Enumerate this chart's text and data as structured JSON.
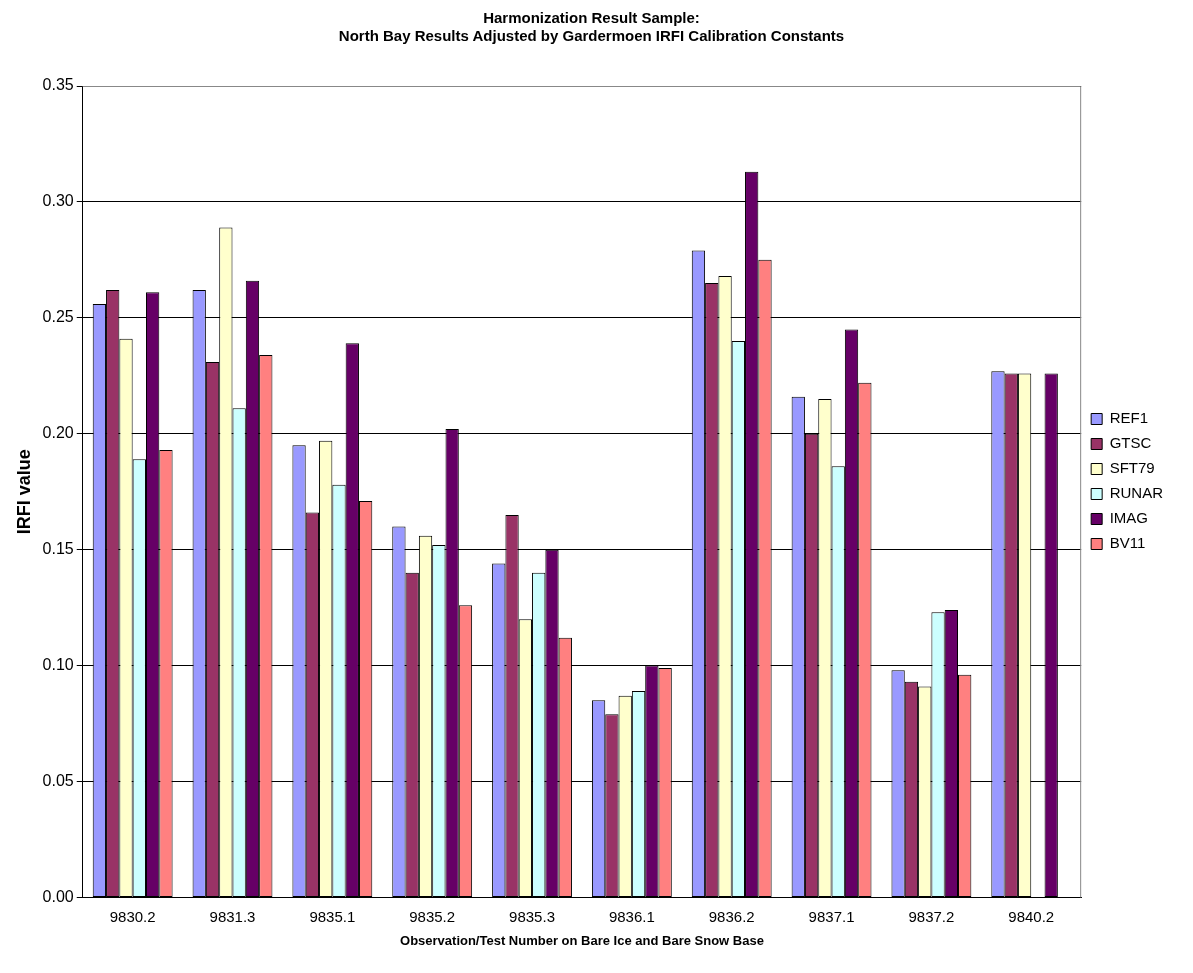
{
  "chart_data": {
    "type": "bar",
    "title": "Harmonization Result Sample:\nNorth Bay Results Adjusted by Gardermoen IRFI Calibration Constants",
    "xlabel": "Observation/Test Number on Bare Ice and Bare Snow Base",
    "ylabel": "IRFI value",
    "categories": [
      "9830.2",
      "9831.3",
      "9835.1",
      "9835.2",
      "9835.3",
      "9836.1",
      "9836.2",
      "9837.1",
      "9837.2",
      "9840.2"
    ],
    "series": [
      {
        "name": "REF1",
        "color": "#9999ff",
        "values": [
          0.256,
          0.262,
          0.195,
          0.16,
          0.144,
          0.085,
          0.279,
          0.216,
          0.098,
          0.227
        ]
      },
      {
        "name": "GTSC",
        "color": "#993366",
        "values": [
          0.262,
          0.231,
          0.166,
          0.14,
          0.165,
          0.079,
          0.265,
          0.2,
          0.093,
          0.226
        ]
      },
      {
        "name": "SFT79",
        "color": "#ffffcc",
        "values": [
          0.241,
          0.289,
          0.197,
          0.156,
          0.12,
          0.087,
          0.268,
          0.215,
          0.091,
          0.226
        ]
      },
      {
        "name": "RUNAR",
        "color": "#ccffff",
        "values": [
          0.189,
          0.211,
          0.178,
          0.152,
          0.14,
          0.089,
          0.24,
          0.186,
          0.123,
          null
        ]
      },
      {
        "name": "IMAG",
        "color": "#660066",
        "values": [
          0.261,
          0.266,
          0.239,
          0.202,
          0.15,
          0.1,
          0.313,
          0.245,
          0.124,
          0.226
        ]
      },
      {
        "name": "BV11",
        "color": "#ff8080",
        "values": [
          0.193,
          0.234,
          0.171,
          0.126,
          0.112,
          0.099,
          0.275,
          0.222,
          0.096,
          null
        ]
      }
    ],
    "ylim": [
      0,
      0.35
    ],
    "yticks": [
      {
        "value": 0,
        "label": "0.00"
      },
      0.05,
      {
        "value": 0.1,
        "label": "0.10"
      },
      0.15,
      {
        "value": 0.2,
        "label": "0.20"
      },
      0.25,
      {
        "value": 0.3,
        "label": "0.30"
      },
      0.35
    ],
    "grid": "y",
    "legend": "right"
  }
}
